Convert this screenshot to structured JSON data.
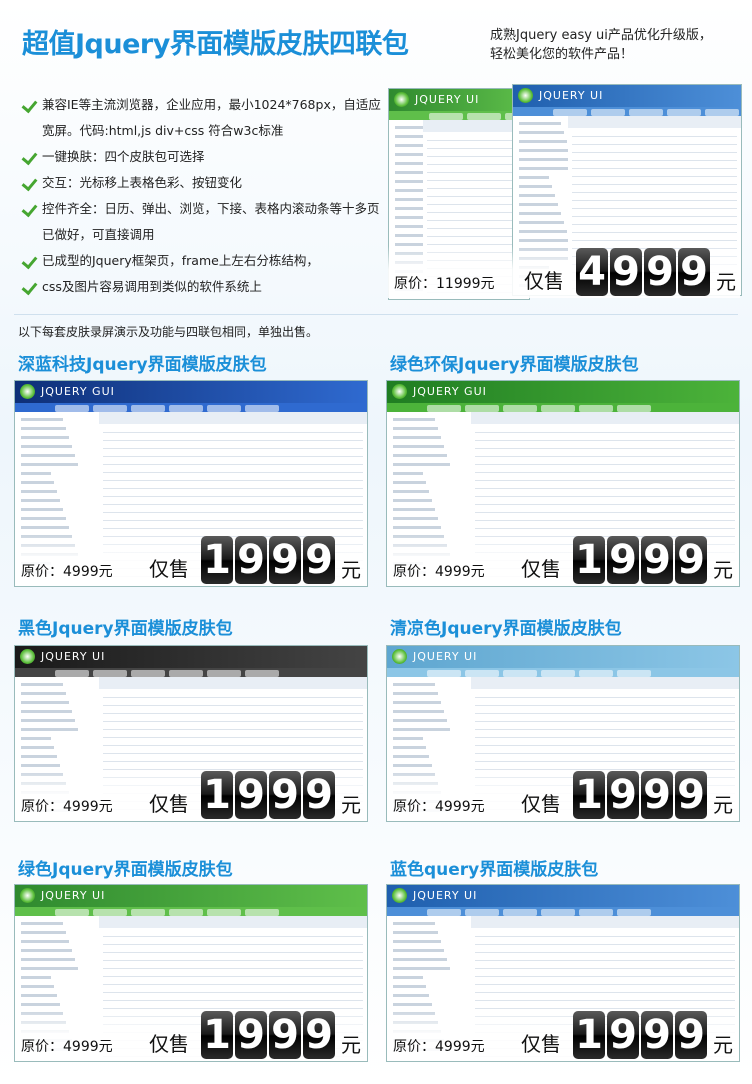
{
  "header": {
    "title": "超值Jquery界面模版皮肤四联包",
    "subtitle": [
      "成熟Jquery easy ui产品优化升级版，",
      "轻松美化您的软件产品！"
    ]
  },
  "features": [
    "兼容IE等主流浏览器，企业应用，最小1024*768px，自适应宽屏。代码:html,js div+css 符合w3c标准",
    "一键换肤：四个皮肤包可选择",
    "交互：光标移上表格色彩、按钮变化",
    "控件齐全：日历、弹出、浏览，下接、表格内滚动条等十多页已做好，可直接调用",
    "已成型的Jquery框架页，frame上左右分栋结构，",
    "css及图片容易调用到类似的软件系统上"
  ],
  "hero": {
    "screens": [
      "JQUERY UI",
      "JQUERY UI"
    ],
    "original": "原价：11999元",
    "sale": "仅售",
    "digits": [
      "4",
      "9",
      "9",
      "9"
    ],
    "unit": "元"
  },
  "note": "以下每套皮肤录屏演示及功能与四联包相同，单独出售。",
  "packages": [
    {
      "title": "深蓝科技Jquery界面模版皮肤包",
      "screen_label": "JQUERY GUI",
      "original": "原价：4999元",
      "sale": "仅售",
      "digits": [
        "1",
        "9",
        "9",
        "9"
      ],
      "unit": "元"
    },
    {
      "title": "绿色环保Jquery界面模版皮肤包",
      "screen_label": "JQUERY GUI",
      "original": "原价：4999元",
      "sale": "仅售",
      "digits": [
        "1",
        "9",
        "9",
        "9"
      ],
      "unit": "元"
    },
    {
      "title": "黑色Jquery界面模版皮肤包",
      "screen_label": "JQUERY UI",
      "original": "原价：4999元",
      "sale": "仅售",
      "digits": [
        "1",
        "9",
        "9",
        "9"
      ],
      "unit": "元"
    },
    {
      "title": "清凉色Jquery界面模版皮肤包",
      "screen_label": "JQUERY UI",
      "original": "原价：4999元",
      "sale": "仅售",
      "digits": [
        "1",
        "9",
        "9",
        "9"
      ],
      "unit": "元"
    },
    {
      "title": "绿色Jquery界面模版皮肤包",
      "screen_label": "JQUERY UI",
      "original": "原价：4999元",
      "sale": "仅售",
      "digits": [
        "1",
        "9",
        "9",
        "9"
      ],
      "unit": "元"
    },
    {
      "title": "蓝色query界面模版皮肤包",
      "screen_label": "JQUERY UI",
      "original": "原价：4999元",
      "sale": "仅售",
      "digits": [
        "1",
        "9",
        "9",
        "9"
      ],
      "unit": "元"
    }
  ]
}
